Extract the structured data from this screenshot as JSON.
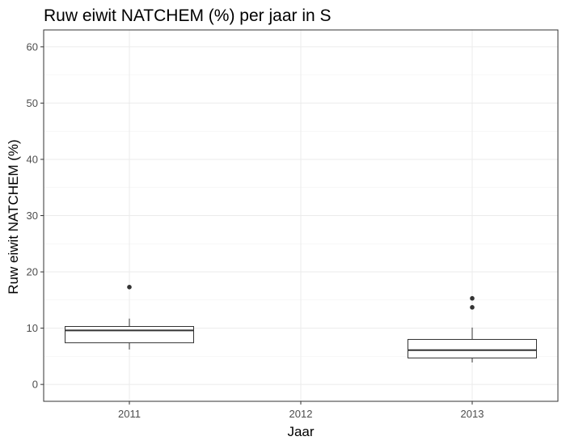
{
  "chart_data": {
    "type": "boxplot",
    "title": "Ruw eiwit NATCHEM (%) per jaar in S",
    "xlabel": "Jaar",
    "ylabel": "Ruw eiwit NATCHEM (%)",
    "categories": [
      "2011",
      "2012",
      "2013"
    ],
    "ylim": [
      -3,
      63
    ],
    "yticks": [
      0,
      10,
      20,
      30,
      40,
      50,
      60
    ],
    "grid": true,
    "boxes": [
      {
        "category": "2011",
        "lower_whisker": 6.2,
        "q1": 7.4,
        "median": 9.6,
        "q3": 10.3,
        "upper_whisker": 11.7,
        "outliers": [
          17.3
        ]
      },
      {
        "category": "2013",
        "lower_whisker": 3.9,
        "q1": 4.7,
        "median": 6.1,
        "q3": 8.0,
        "upper_whisker": 10.1,
        "outliers": [
          13.7,
          15.3
        ]
      }
    ]
  }
}
